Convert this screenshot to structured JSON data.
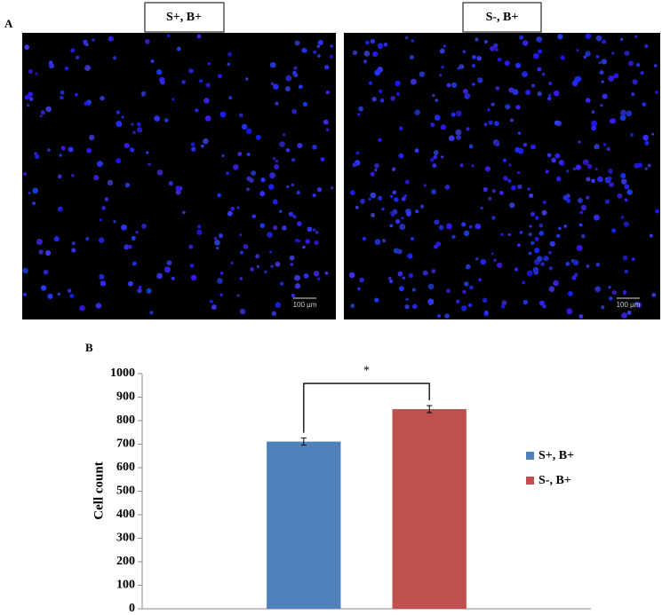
{
  "panel_a": {
    "label": "A",
    "images": [
      {
        "title": "S+, B+",
        "scale": "100 µm"
      },
      {
        "title": "S-, B+",
        "scale": "100 µm"
      }
    ]
  },
  "chart_data": {
    "type": "bar",
    "label": "B",
    "ylabel": "Cell count",
    "categories": [
      null
    ],
    "series": [
      {
        "name": "S+, B+",
        "color": "#4f81bd",
        "values": [
          711
        ],
        "errors": [
          15
        ]
      },
      {
        "name": "S-, B+",
        "color": "#c0504d",
        "values": [
          849
        ],
        "errors": [
          15
        ]
      }
    ],
    "significance": "*",
    "ylim": [
      0,
      1000
    ],
    "yticks": [
      0,
      100,
      200,
      300,
      400,
      500,
      600,
      700,
      800,
      900,
      1000
    ],
    "grid": false,
    "legend": "right"
  }
}
